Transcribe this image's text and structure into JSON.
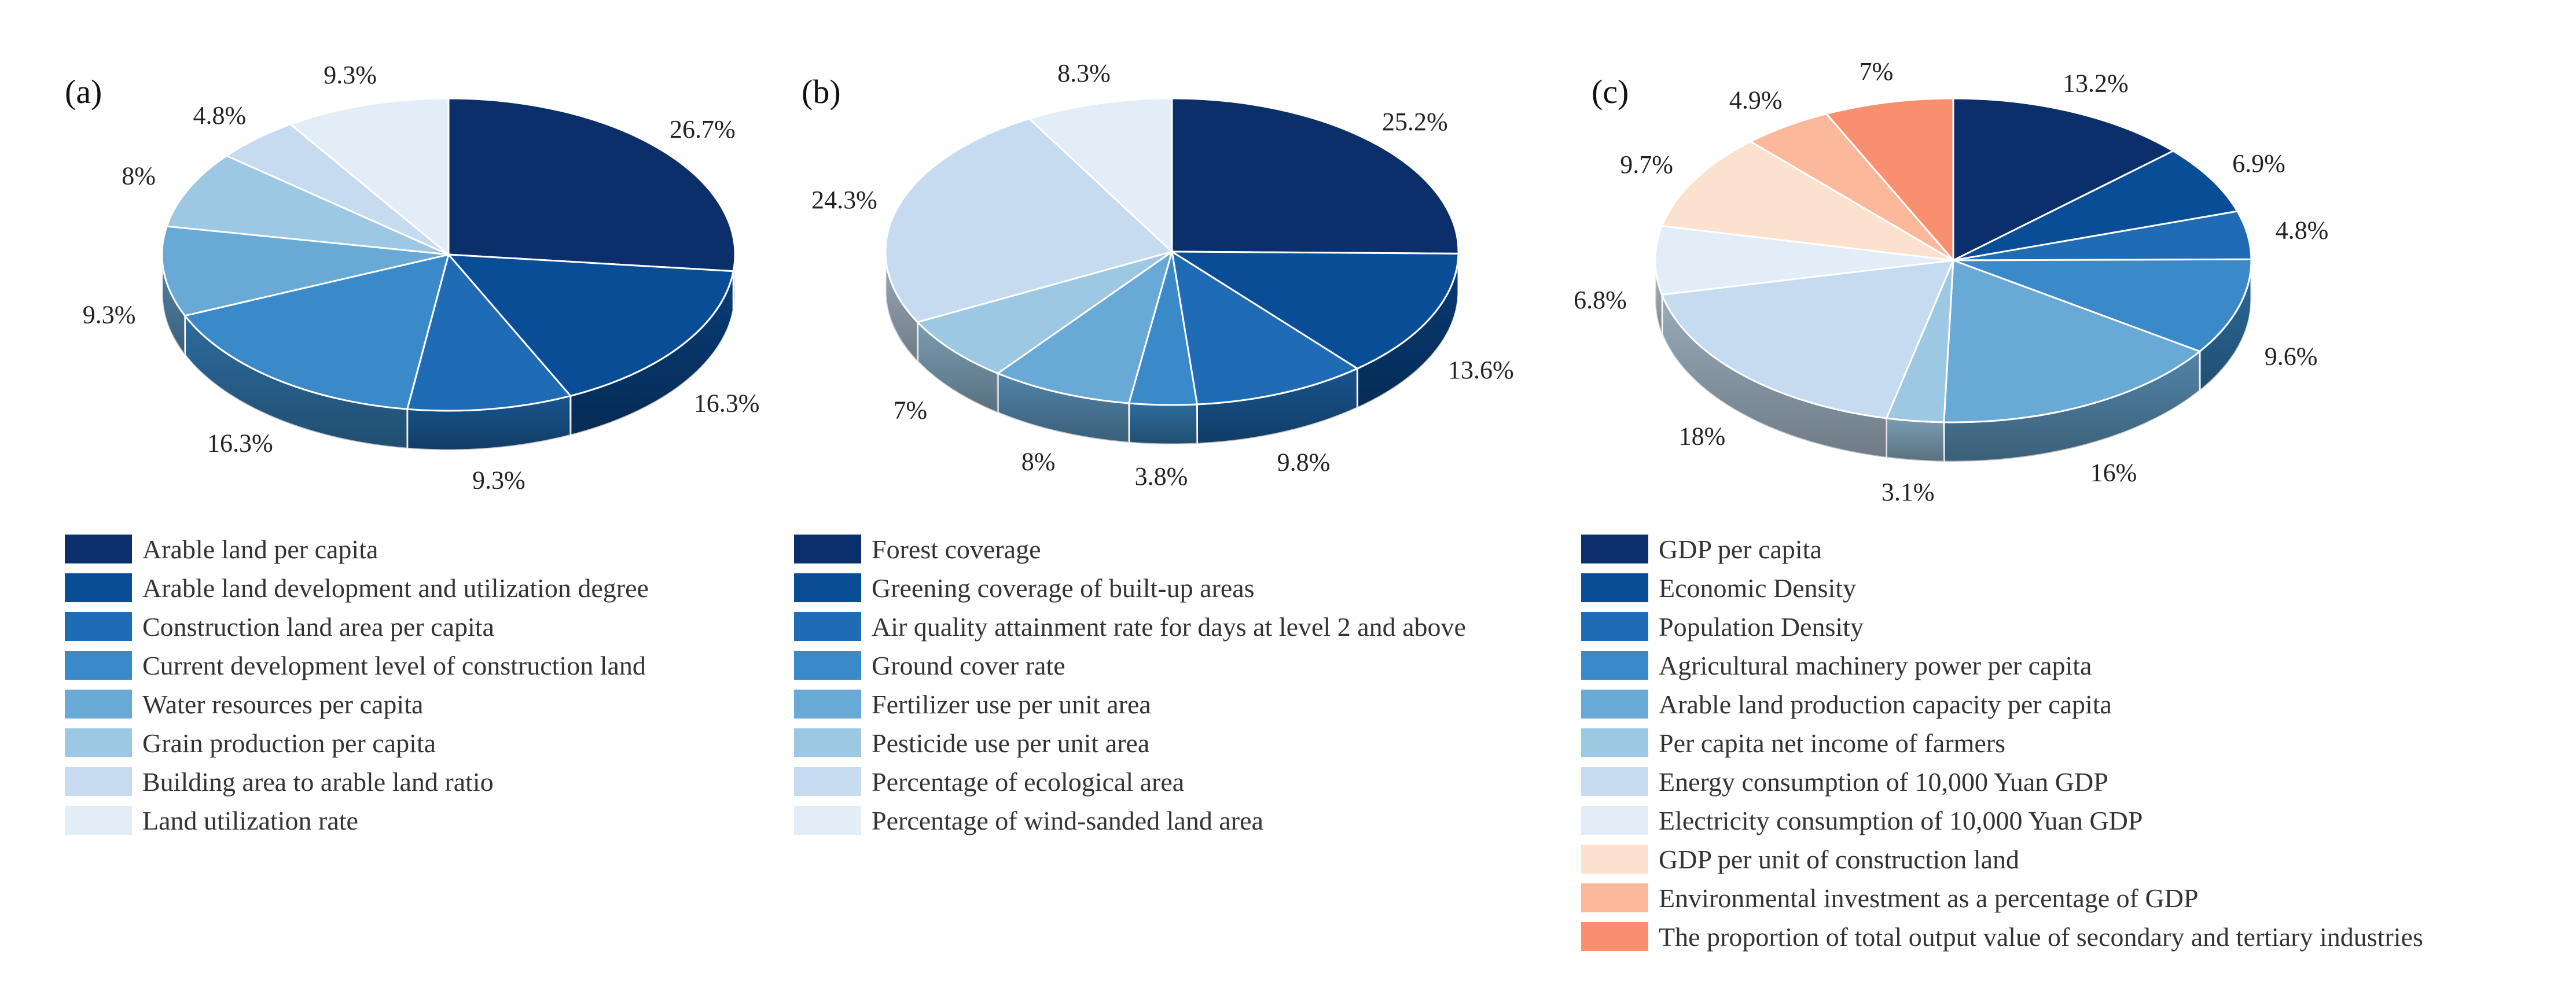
{
  "chart_data": [
    {
      "type": "pie",
      "panel": "(a)",
      "series": [
        {
          "name": "Arable land per capita",
          "value": 26.7,
          "label": "26.7%",
          "color": "#0a2f6b"
        },
        {
          "name": "Arable land development and utilization degree",
          "value": 16.3,
          "label": "16.3%",
          "color": "#0a4d97"
        },
        {
          "name": "Construction land area per capita",
          "value": 9.3,
          "label": "9.3%",
          "color": "#1f6cb5"
        },
        {
          "name": "Current development level of construction land",
          "value": 16.3,
          "label": "16.3%",
          "color": "#3a8ac9"
        },
        {
          "name": "Water resources per capita",
          "value": 9.3,
          "label": "9.3%",
          "color": "#68a9d6"
        },
        {
          "name": "Grain production per capita",
          "value": 8,
          "label": "8%",
          "color": "#9dc8e3"
        },
        {
          "name": "Building area to arable land ratio",
          "value": 4.8,
          "label": "4.8%",
          "color": "#c6dbf0"
        },
        {
          "name": "Land utilization rate",
          "value": 9.3,
          "label": "9.3%",
          "color": "#e2edf7"
        }
      ]
    },
    {
      "type": "pie",
      "panel": "(b)",
      "series": [
        {
          "name": "Forest coverage",
          "value": 25.2,
          "label": "25.2%",
          "color": "#0a2f6b"
        },
        {
          "name": "Greening coverage of built-up areas",
          "value": 13.6,
          "label": "13.6%",
          "color": "#0a4d97"
        },
        {
          "name": "Air quality attainment rate for days at level 2 and above",
          "value": 9.8,
          "label": "9.8%",
          "color": "#1f6cb5"
        },
        {
          "name": "Ground cover rate",
          "value": 3.8,
          "label": "3.8%",
          "color": "#3a8ac9"
        },
        {
          "name": "Fertilizer use per unit area",
          "value": 8,
          "label": "8%",
          "color": "#68a9d6"
        },
        {
          "name": "Pesticide use per unit area",
          "value": 7,
          "label": "7%",
          "color": "#9dc8e3"
        },
        {
          "name": "Percentage of ecological area",
          "value": 24.3,
          "label": "24.3%",
          "color": "#c6dbf0"
        },
        {
          "name": "Percentage of wind-sanded land area",
          "value": 8.3,
          "label": "8.3%",
          "color": "#e2edf7"
        }
      ]
    },
    {
      "type": "pie",
      "panel": "(c)",
      "series": [
        {
          "name": "GDP per capita",
          "value": 13.2,
          "label": "13.2%",
          "color": "#0a2f6b"
        },
        {
          "name": "Economic Density",
          "value": 6.9,
          "label": "6.9%",
          "color": "#0a4d97"
        },
        {
          "name": "Population Density",
          "value": 4.8,
          "label": "4.8%",
          "color": "#1f6cb5"
        },
        {
          "name": "Agricultural machinery power per capita",
          "value": 9.6,
          "label": "9.6%",
          "color": "#3a8ac9"
        },
        {
          "name": "Arable land production capacity per capita",
          "value": 16,
          "label": "16%",
          "color": "#68a9d6"
        },
        {
          "name": "Per capita net income of farmers",
          "value": 3.1,
          "label": "3.1%",
          "color": "#9dc8e3"
        },
        {
          "name": "Energy consumption of 10,000 Yuan GDP",
          "value": 18,
          "label": "18%",
          "color": "#c6dbf0"
        },
        {
          "name": "Electricity consumption of 10,000 Yuan GDP",
          "value": 6.8,
          "label": "6.8%",
          "color": "#e2edf7"
        },
        {
          "name": "GDP per unit of construction land",
          "value": 9.7,
          "label": "9.7%",
          "color": "#fde1cf"
        },
        {
          "name": "Environmental investment as a percentage of GDP",
          "value": 4.9,
          "label": "4.9%",
          "color": "#fbb89a"
        },
        {
          "name": "The proportion of total output value of secondary and tertiary industries",
          "value": 7,
          "label": "7%",
          "color": "#f98f6f"
        }
      ]
    }
  ]
}
